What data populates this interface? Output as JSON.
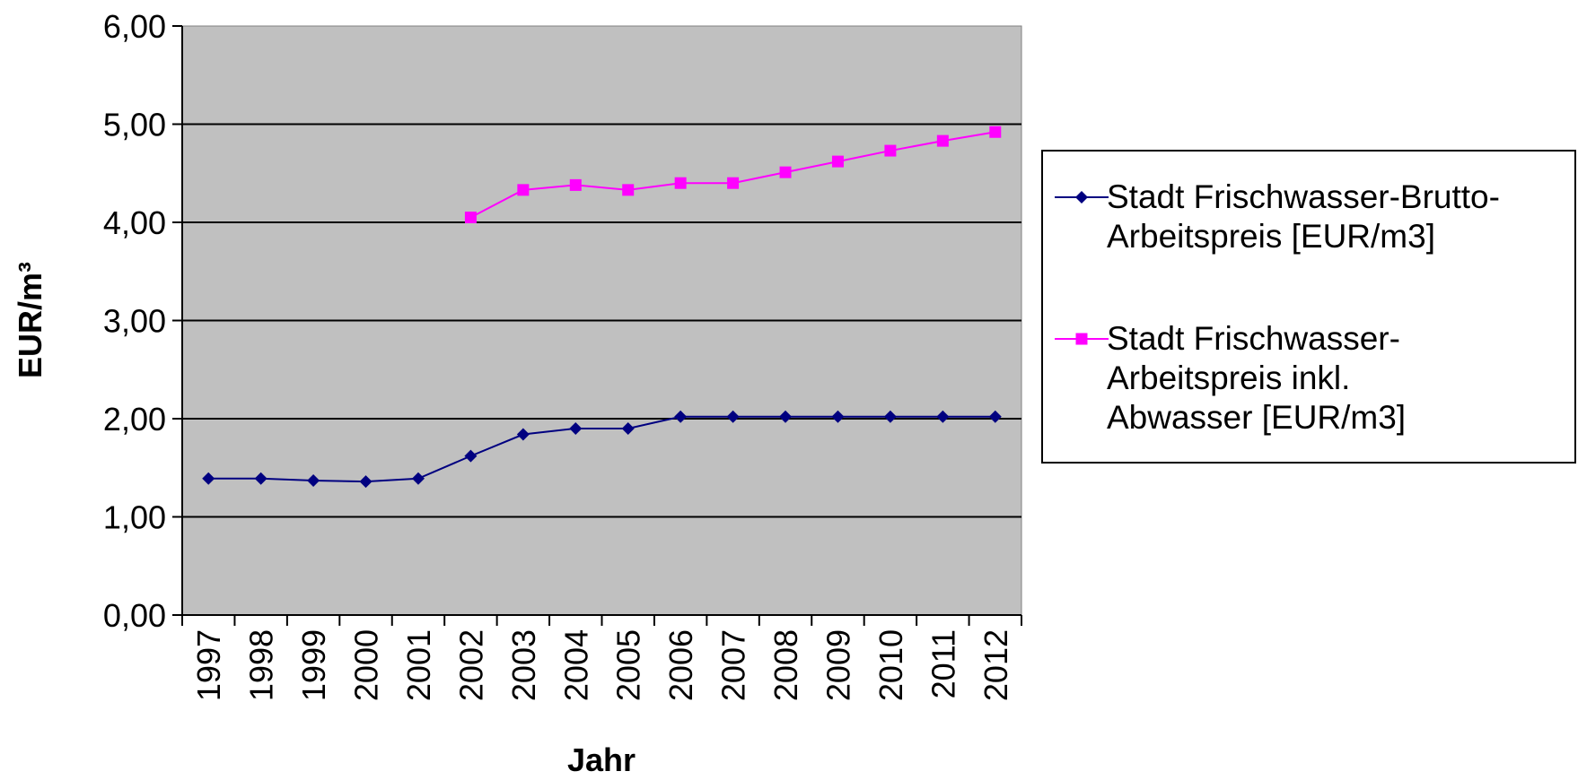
{
  "chart_data": {
    "type": "line",
    "title": "",
    "xlabel": "Jahr",
    "ylabel": "EUR/m³",
    "ylim": [
      0,
      6
    ],
    "yticks": [
      "0,00",
      "1,00",
      "2,00",
      "3,00",
      "4,00",
      "5,00",
      "6,00"
    ],
    "categories": [
      "1997",
      "1998",
      "1999",
      "2000",
      "2001",
      "2002",
      "2003",
      "2004",
      "2005",
      "2006",
      "2007",
      "2008",
      "2009",
      "2010",
      "2011",
      "2012"
    ],
    "grid": "horizontal",
    "plot_background": "#c0c0c0",
    "legend_position": "right",
    "series": [
      {
        "name_lines": [
          "Stadt Frischwasser-Brutto-",
          "Arbeitspreis [EUR/m3]"
        ],
        "marker": "diamond",
        "color": "#000080",
        "values": [
          1.39,
          1.39,
          1.37,
          1.36,
          1.39,
          1.62,
          1.84,
          1.9,
          1.9,
          2.02,
          2.02,
          2.02,
          2.02,
          2.02,
          2.02,
          2.02
        ]
      },
      {
        "name_lines": [
          "Stadt Frischwasser-",
          "Arbeitspreis inkl.",
          "Abwasser [EUR/m3]"
        ],
        "marker": "square",
        "color": "#ff00ff",
        "values": [
          null,
          null,
          null,
          null,
          null,
          4.05,
          4.33,
          4.38,
          4.33,
          4.4,
          4.4,
          4.51,
          4.62,
          4.73,
          4.83,
          4.92
        ]
      }
    ]
  }
}
